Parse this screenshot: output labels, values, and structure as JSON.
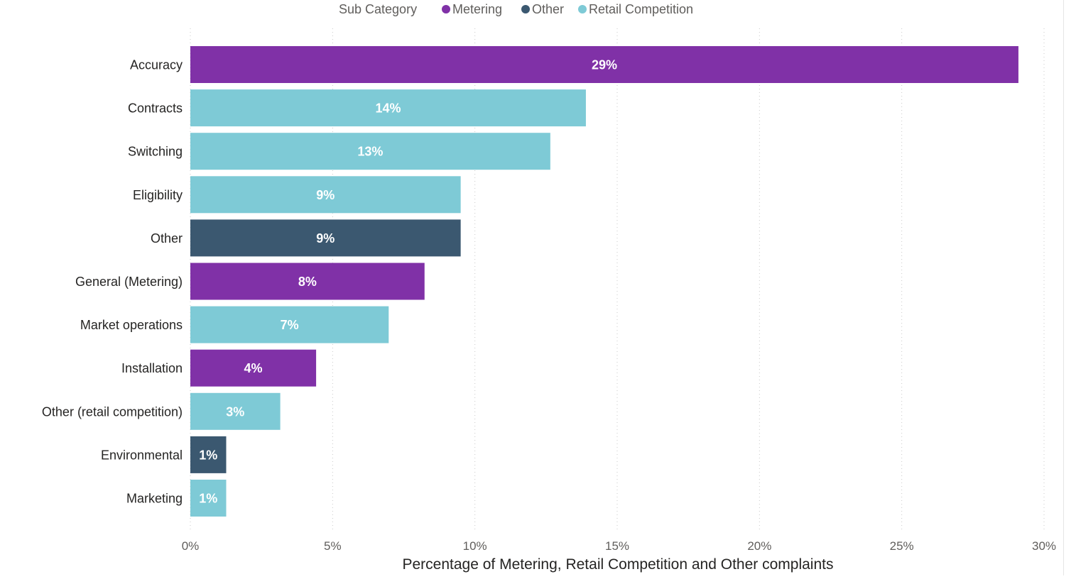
{
  "chart_data": {
    "type": "bar",
    "orientation": "horizontal",
    "legend": {
      "title": "Sub Category",
      "placement": "top-center",
      "entries": [
        {
          "name": "Metering",
          "color": "#8031a7"
        },
        {
          "name": "Other",
          "color": "#3b5870"
        },
        {
          "name": "Retail Competition",
          "color": "#7ecad6"
        }
      ]
    },
    "categories": [
      "Accuracy",
      "Contracts",
      "Switching",
      "Eligibility",
      "Other",
      "General (Metering)",
      "Market operations",
      "Installation",
      "Other (retail competition)",
      "Environmental",
      "Marketing"
    ],
    "values": [
      29.1,
      13.9,
      12.65,
      9.5,
      9.5,
      8.23,
      6.97,
      4.42,
      3.16,
      1.26,
      1.26
    ],
    "series_of_category": [
      "Metering",
      "Retail Competition",
      "Retail Competition",
      "Retail Competition",
      "Other",
      "Metering",
      "Retail Competition",
      "Metering",
      "Retail Competition",
      "Other",
      "Retail Competition"
    ],
    "data_labels": [
      "29%",
      "14%",
      "13%",
      "9%",
      "9%",
      "8%",
      "7%",
      "4%",
      "3%",
      "1%",
      "1%"
    ],
    "x_ticks": [
      0,
      5,
      10,
      15,
      20,
      25,
      30
    ],
    "x_tick_labels": [
      "0%",
      "5%",
      "10%",
      "15%",
      "20%",
      "25%",
      "30%"
    ],
    "xlim": [
      0,
      30
    ],
    "xlabel": "Percentage of Metering, Retail Competition and Other complaints",
    "ylabel": "",
    "grid": "vertical dotted"
  }
}
